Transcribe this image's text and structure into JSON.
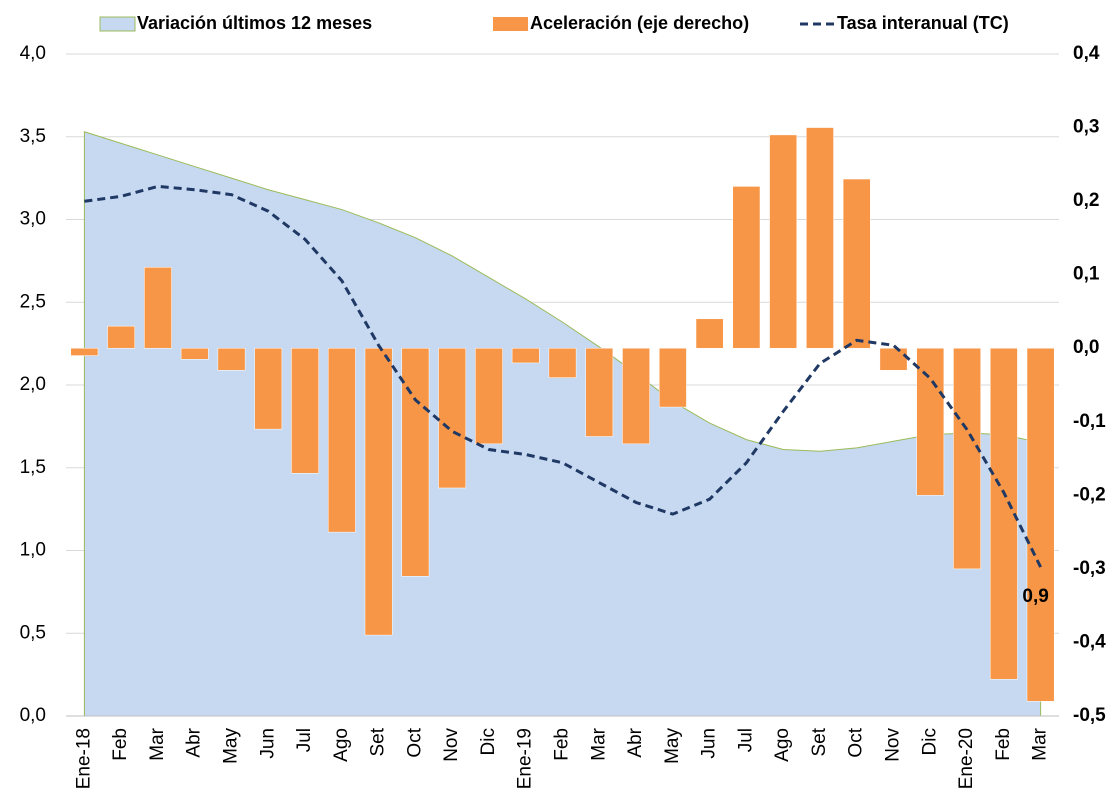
{
  "chart_data": {
    "type": "combo",
    "categories": [
      "Ene-18",
      "Feb",
      "Mar",
      "Abr",
      "May",
      "Jun",
      "Jul",
      "Ago",
      "Set",
      "Oct",
      "Nov",
      "Dic",
      "Ene-19",
      "Feb",
      "Mar",
      "Abr",
      "May",
      "Jun",
      "Jul",
      "Ago",
      "Set",
      "Oct",
      "Nov",
      "Dic",
      "Ene-20",
      "Feb",
      "Mar"
    ],
    "series": [
      {
        "name": "Variación últimos 12 meses",
        "type": "area",
        "color": "#c6d9f1",
        "stroke": "#9bbb59",
        "values": [
          3.53,
          3.46,
          3.39,
          3.32,
          3.25,
          3.18,
          3.12,
          3.06,
          2.98,
          2.89,
          2.78,
          2.65,
          2.52,
          2.38,
          2.23,
          2.07,
          1.9,
          1.77,
          1.67,
          1.61,
          1.6,
          1.62,
          1.66,
          1.7,
          1.71,
          1.7,
          1.65
        ]
      },
      {
        "name": "Aceleración (eje derecho)",
        "type": "bar",
        "axis": "y2",
        "color": "#f79646",
        "values": [
          -0.01,
          0.03,
          0.11,
          -0.015,
          -0.03,
          -0.11,
          -0.17,
          -0.25,
          -0.39,
          -0.31,
          -0.19,
          -0.13,
          -0.02,
          -0.04,
          -0.12,
          -0.13,
          -0.08,
          0.04,
          0.22,
          0.29,
          0.3,
          0.23,
          -0.03,
          -0.2,
          -0.3,
          -0.45,
          -0.48
        ]
      },
      {
        "name": "Tasa interanual (TC)",
        "type": "line",
        "color": "#1f3864",
        "dashed": true,
        "values": [
          3.11,
          3.14,
          3.2,
          3.18,
          3.15,
          3.05,
          2.88,
          2.63,
          2.24,
          1.91,
          1.72,
          1.61,
          1.58,
          1.53,
          1.41,
          1.29,
          1.22,
          1.31,
          1.53,
          1.84,
          2.13,
          2.27,
          2.24,
          2.04,
          1.73,
          1.35,
          0.9
        ],
        "value_labels": [
          null,
          null,
          null,
          null,
          null,
          null,
          null,
          null,
          null,
          null,
          null,
          null,
          null,
          null,
          null,
          null,
          null,
          null,
          null,
          null,
          null,
          null,
          null,
          null,
          null,
          null,
          "0,9"
        ]
      }
    ],
    "ylim": [
      0,
      4
    ],
    "yticks": [
      {
        "value": 0,
        "label": "0,0"
      },
      {
        "value": 0.5,
        "label": "0,5"
      },
      {
        "value": 1,
        "label": "1,0"
      },
      {
        "value": 1.5,
        "label": "1,5"
      },
      {
        "value": 2,
        "label": "2,0"
      },
      {
        "value": 2.5,
        "label": "2,5"
      },
      {
        "value": 3,
        "label": "3,0"
      },
      {
        "value": 3.5,
        "label": "3,5"
      },
      {
        "value": 4,
        "label": "4,0"
      }
    ],
    "y2lim": [
      -0.5,
      0.4
    ],
    "y2ticks": [
      {
        "value": -0.5,
        "label": "-0,5"
      },
      {
        "value": -0.4,
        "label": "-0,4"
      },
      {
        "value": -0.3,
        "label": "-0,3"
      },
      {
        "value": -0.2,
        "label": "-0,2"
      },
      {
        "value": -0.1,
        "label": "-0,1"
      },
      {
        "value": 0,
        "label": "0,0"
      },
      {
        "value": 0.1,
        "label": "0,1"
      },
      {
        "value": 0.2,
        "label": "0,2"
      },
      {
        "value": 0.3,
        "label": "0,3"
      },
      {
        "value": 0.4,
        "label": "0,4"
      }
    ],
    "y2tick_color": "#f79646",
    "grid": true,
    "legend": "top"
  }
}
